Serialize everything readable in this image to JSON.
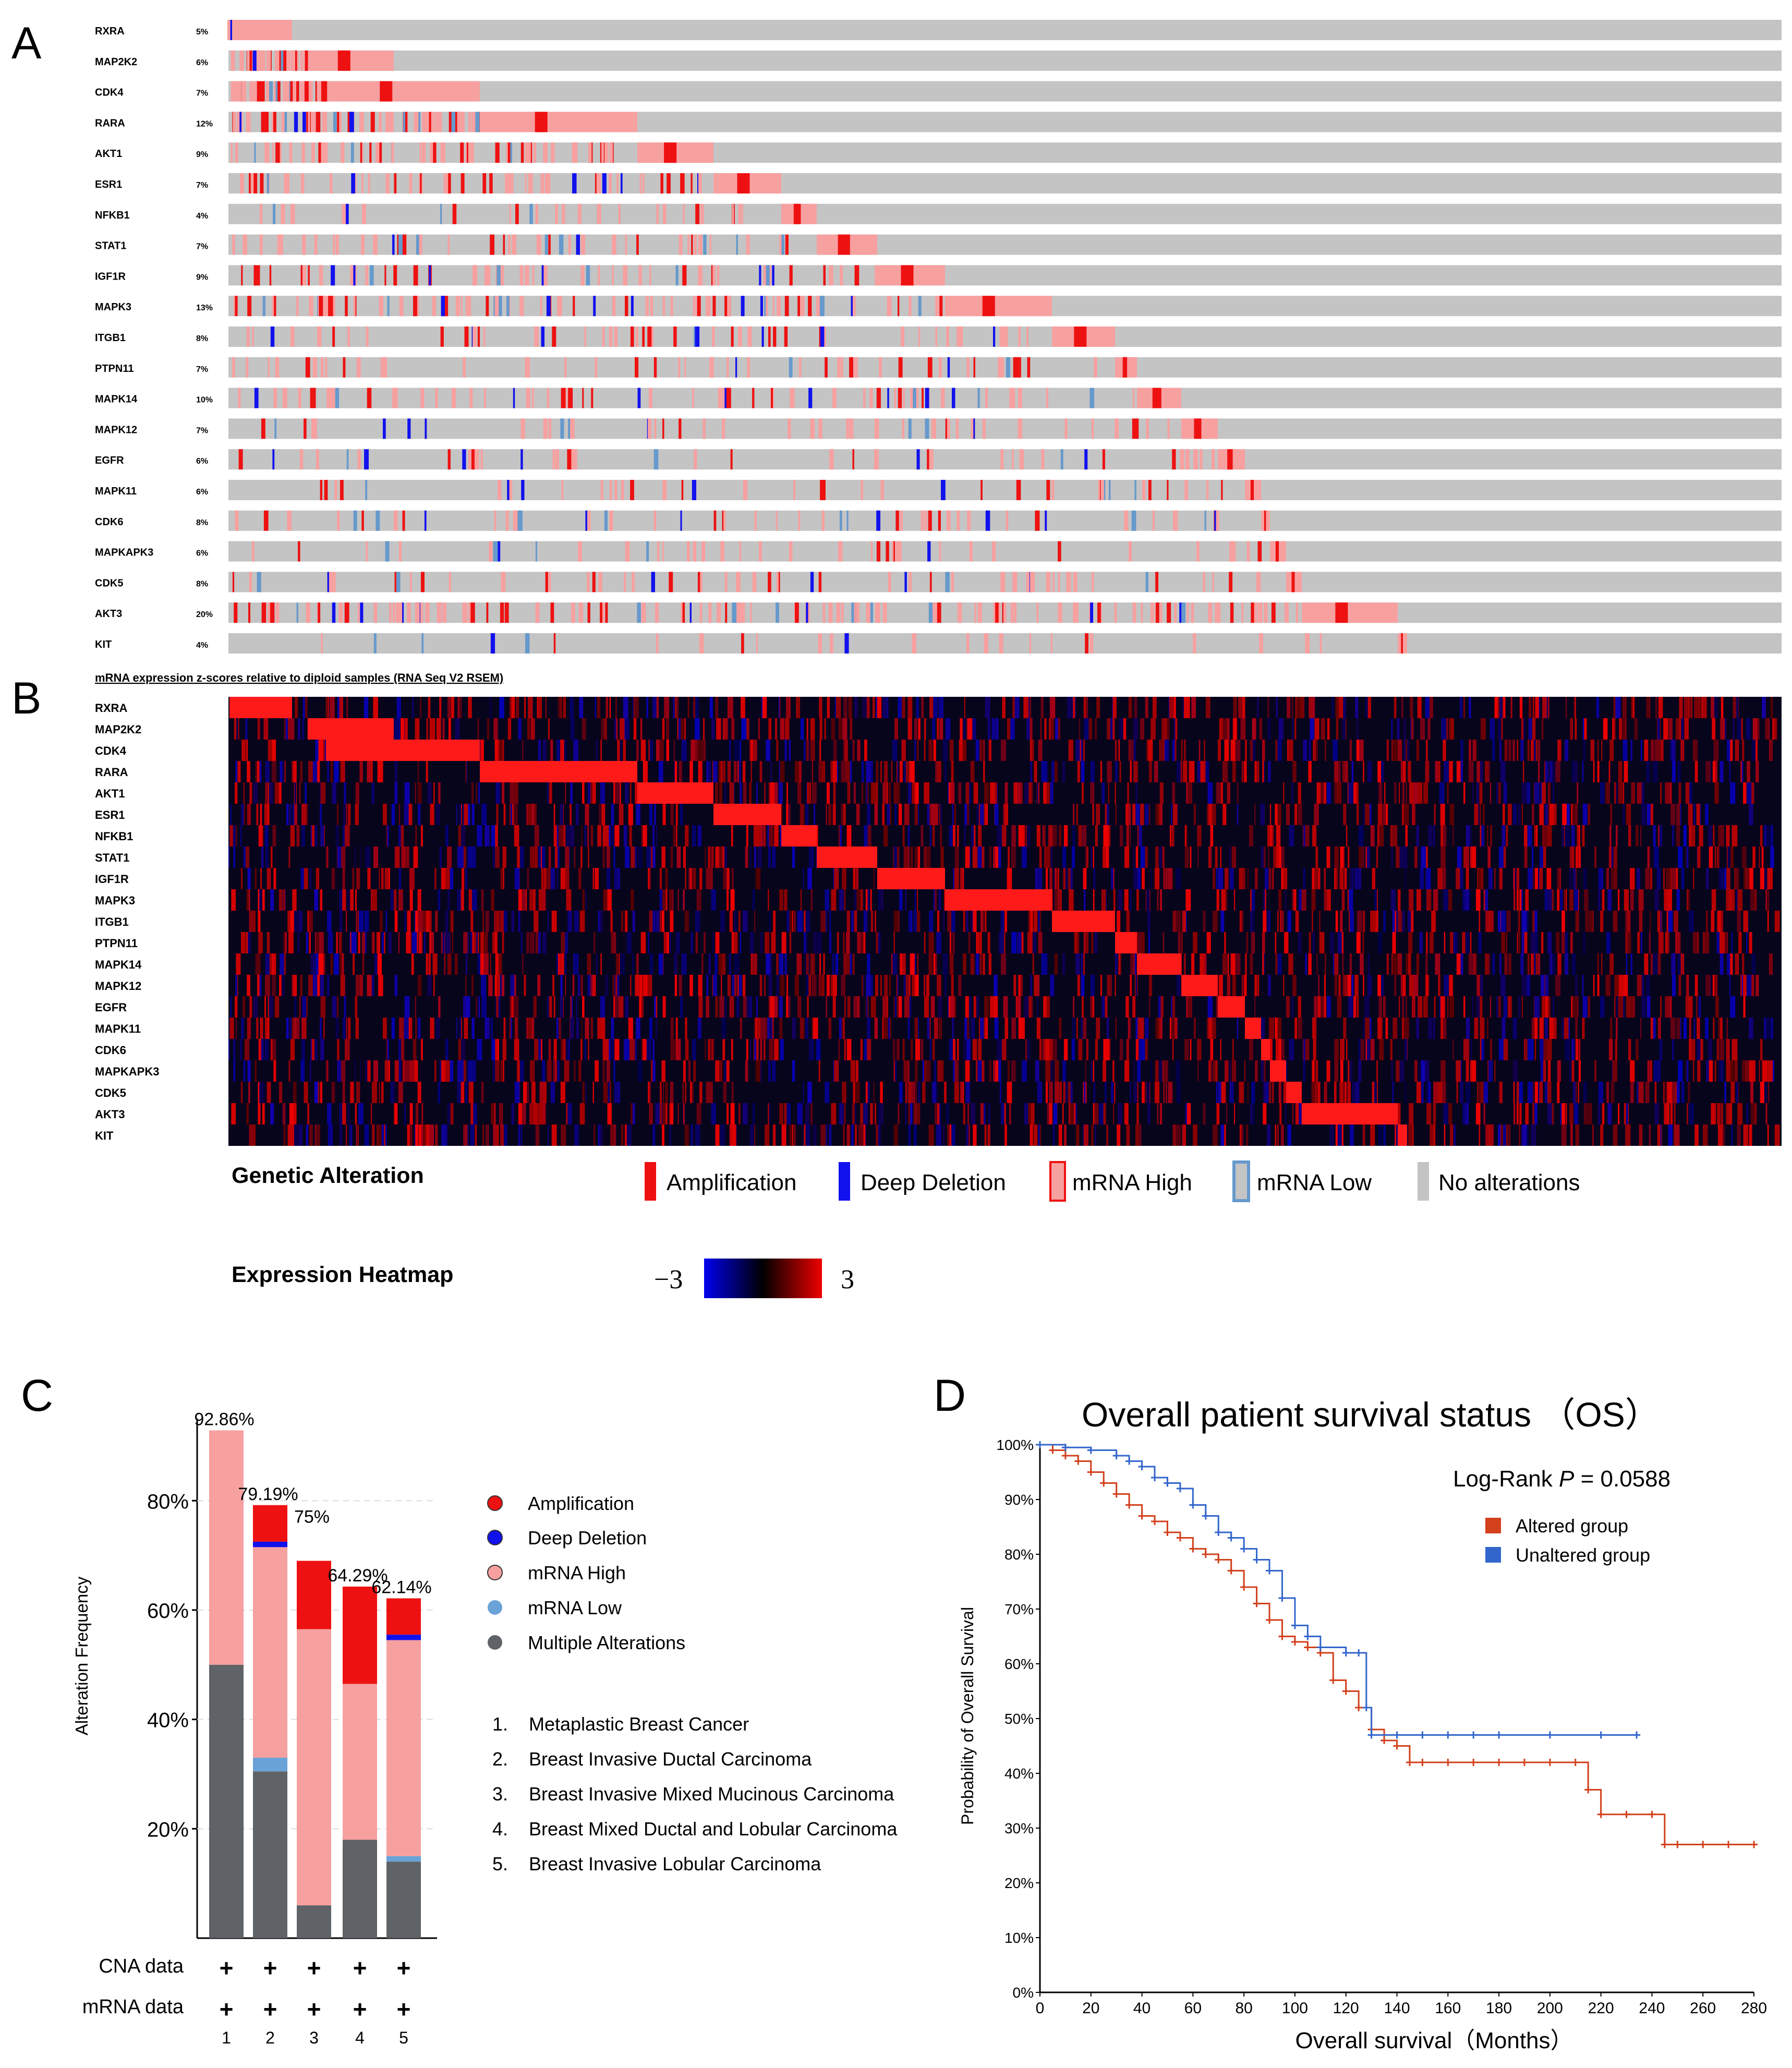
{
  "panel_letters": {
    "a": "A",
    "b": "B",
    "c": "C",
    "d": "D"
  },
  "colors": {
    "amplification": "#ee1111",
    "deep_deletion": "#1111ee",
    "mrna_high": "#f7a0a0",
    "mrna_low": "#6699cc",
    "no_alteration": "#c4c4c4",
    "multiple": "#5f6368",
    "altered": "#d2401c",
    "unaltered": "#3366cc"
  },
  "oncoprint": {
    "genes": [
      "RXRA",
      "MAP2K2",
      "CDK4",
      "RARA",
      "AKT1",
      "ESR1",
      "NFKB1",
      "STAT1",
      "IGF1R",
      "MAPK3",
      "ITGB1",
      "PTPN11",
      "MAPK14",
      "MAPK12",
      "EGFR",
      "MAPK11",
      "CDK6",
      "MAPKAPK3",
      "CDK5",
      "AKT3",
      "KIT"
    ],
    "percents": [
      "5%",
      "6%",
      "7%",
      "12%",
      "9%",
      "7%",
      "4%",
      "7%",
      "9%",
      "13%",
      "8%",
      "7%",
      "10%",
      "7%",
      "6%",
      "6%",
      "8%",
      "6%",
      "8%",
      "20%",
      "4%"
    ],
    "alteration_frequency_pct": [
      5,
      6,
      7,
      12,
      9,
      7,
      4,
      7,
      9,
      13,
      8,
      7,
      10,
      7,
      6,
      6,
      8,
      6,
      8,
      20,
      4
    ]
  },
  "heatmap": {
    "title": "mRNA expression z-scores relative to diploid samples (RNA Seq V2 RSEM)",
    "genes": [
      "RXRA",
      "MAP2K2",
      "CDK4",
      "RARA",
      "AKT1",
      "ESR1",
      "NFKB1",
      "STAT1",
      "IGF1R",
      "MAPK3",
      "ITGB1",
      "PTPN11",
      "MAPK14",
      "MAPK12",
      "EGFR",
      "MAPK11",
      "CDK6",
      "MAPKAPK3",
      "CDK5",
      "AKT3",
      "KIT"
    ]
  },
  "legend": {
    "genetic_title": "Genetic Alteration",
    "items": [
      "Amplification",
      "Deep Deletion",
      "mRNA High",
      "mRNA Low",
      "No alterations"
    ],
    "heatmap_title": "Expression Heatmap",
    "min": "−3",
    "max": "3"
  },
  "chart_c": {
    "ylabel": "Alteration Frequency",
    "yticks": [
      "20%",
      "40%",
      "60%",
      "80%"
    ],
    "row_labels": [
      "CNA data",
      "mRNA data"
    ],
    "cna_marks": [
      "+",
      "+",
      "+",
      "+",
      "+"
    ],
    "mrna_marks": [
      "+",
      "+",
      "+",
      "+",
      "+"
    ],
    "bar_numbers": [
      "1",
      "2",
      "3",
      "4",
      "5"
    ],
    "bar_labels": [
      "92.86%",
      "79.19%",
      "75%",
      "64.29%",
      "62.14%"
    ],
    "legend": [
      "Amplification",
      "Deep Deletion",
      "mRNA High",
      "mRNA Low",
      "Multiple Alterations"
    ],
    "cancer_numbers": [
      "1.",
      "2.",
      "3.",
      "4.",
      "5."
    ],
    "cancer_types": [
      "Metaplastic Breast Cancer",
      "Breast Invasive Ductal Carcinoma",
      "Breast Invasive Mixed Mucinous Carcinoma",
      "Breast Mixed Ductal and Lobular Carcinoma",
      "Breast Invasive Lobular Carcinoma"
    ]
  },
  "chart_d": {
    "title": "Overall patient survival status （OS）",
    "pvalue_prefix": "Log-Rank ",
    "pvalue_p": "P",
    "pvalue_suffix": " = 0.0588",
    "xlabel": "Overall survival（Months）",
    "ylabel": "Probability of Overall Survival",
    "xticks": [
      "0",
      "20",
      "40",
      "60",
      "80",
      "100",
      "120",
      "140",
      "160",
      "180",
      "200",
      "220",
      "240",
      "260",
      "280"
    ],
    "yticks": [
      "0%",
      "10%",
      "20%",
      "30%",
      "40%",
      "50%",
      "60%",
      "70%",
      "80%",
      "90%",
      "100%"
    ],
    "legend": [
      "Altered group",
      "Unaltered group"
    ]
  },
  "chart_data": [
    {
      "type": "bar",
      "title": "",
      "xlabel": "",
      "ylabel": "Alteration Frequency",
      "ylim": [
        0,
        95
      ],
      "categories": [
        "1",
        "2",
        "3",
        "4",
        "5"
      ],
      "totals": [
        92.86,
        79.19,
        75,
        64.29,
        62.14
      ],
      "series": [
        {
          "name": "Multiple Alterations",
          "values": [
            50,
            30.5,
            6,
            18,
            14
          ]
        },
        {
          "name": "mRNA Low",
          "values": [
            0,
            2.5,
            0,
            0,
            1
          ]
        },
        {
          "name": "mRNA High",
          "values": [
            42.86,
            38.5,
            50.5,
            28.5,
            39.5
          ]
        },
        {
          "name": "Deep Deletion",
          "values": [
            0,
            1,
            0,
            0,
            1
          ]
        },
        {
          "name": "Amplification",
          "values": [
            0,
            6.69,
            12.5,
            17.79,
            6.64
          ]
        }
      ]
    },
    {
      "type": "line",
      "title": "Overall patient survival status （OS）",
      "xlabel": "Overall survival（Months）",
      "ylabel": "Probability of Overall Survival",
      "xlim": [
        0,
        280
      ],
      "ylim": [
        0,
        100
      ],
      "series": [
        {
          "name": "Altered group",
          "x": [
            0,
            5,
            10,
            15,
            20,
            25,
            30,
            35,
            40,
            45,
            50,
            55,
            60,
            65,
            70,
            75,
            80,
            85,
            90,
            95,
            100,
            105,
            110,
            115,
            120,
            125,
            130,
            135,
            140,
            145,
            150,
            160,
            170,
            180,
            190,
            200,
            210,
            215,
            220,
            230,
            240,
            245,
            250,
            260,
            270,
            280
          ],
          "y": [
            100,
            99,
            98,
            97,
            95,
            93,
            91,
            89,
            87,
            86,
            84,
            83,
            81,
            80,
            79,
            77,
            74,
            71,
            68,
            65,
            64,
            63,
            62,
            57,
            55,
            52,
            48,
            46,
            45,
            42,
            42,
            42,
            42,
            42,
            42,
            42,
            42,
            37,
            32.5,
            32.5,
            32.5,
            27,
            27,
            27,
            27,
            27
          ]
        },
        {
          "name": "Unaltered group",
          "x": [
            0,
            10,
            20,
            30,
            35,
            40,
            45,
            50,
            55,
            60,
            65,
            70,
            75,
            80,
            85,
            90,
            95,
            100,
            105,
            110,
            120,
            125,
            128,
            130,
            140,
            150,
            160,
            170,
            180,
            200,
            220,
            234
          ],
          "y": [
            100,
            99.5,
            99,
            98,
            97,
            96,
            94,
            93,
            92,
            89,
            87,
            84,
            83,
            81,
            79,
            77,
            72,
            67,
            65,
            63,
            62,
            62,
            52,
            47,
            47,
            47,
            47,
            47,
            47,
            47,
            47,
            47
          ]
        }
      ]
    }
  ]
}
